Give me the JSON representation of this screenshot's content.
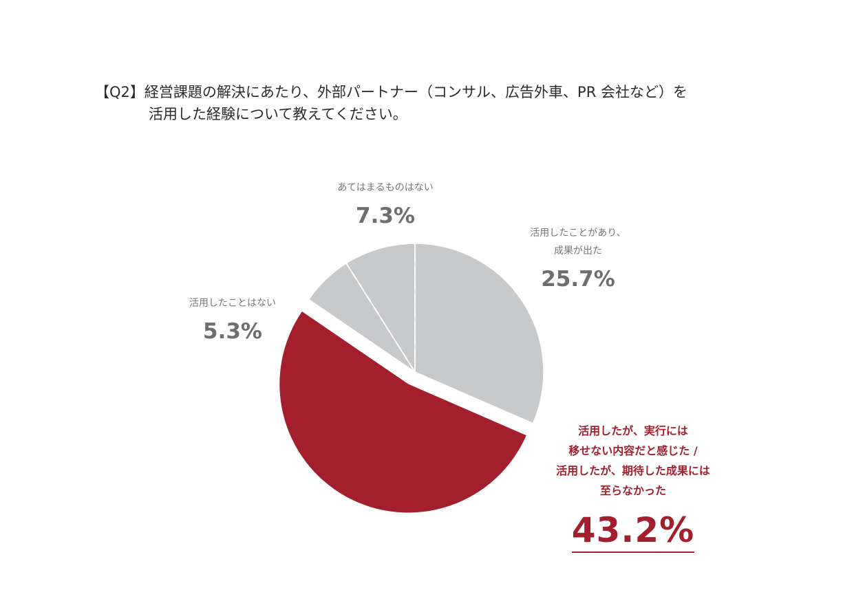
{
  "question": {
    "line1": "【Q2】経営課題の解決にあたり、外部パートナー（コンサル、広告外車、PR 会社など）を",
    "line2": "活用した経験について教えてください。"
  },
  "colors": {
    "accent": "#a41f2d",
    "gray_slice": "#c8c9cb",
    "divider": "#ffffff"
  },
  "chart_data": {
    "type": "pie",
    "title": "",
    "slices": [
      {
        "key": "success",
        "label_lines": [
          "活用したことがあり、",
          "成果が出た"
        ],
        "value": 25.7,
        "value_label": "25.7%",
        "color": "#c8c9cb",
        "exploded": false
      },
      {
        "key": "main",
        "label_lines": [
          "活用したが、実行には",
          "移せない内容だと感じた /",
          "活用したが、期待した成果には",
          "至らなかった"
        ],
        "value": 43.2,
        "value_label": "43.2%",
        "color": "#a41f2d",
        "exploded": true
      },
      {
        "key": "unused",
        "label_lines": [
          "活用したことはない"
        ],
        "value": 5.3,
        "value_label": "5.3%",
        "color": "#c8c9cb",
        "exploded": false
      },
      {
        "key": "none",
        "label_lines": [
          "あてはまるものはない"
        ],
        "value": 7.3,
        "value_label": "7.3%",
        "color": "#c8c9cb",
        "exploded": false
      }
    ],
    "start_angle_deg": 0,
    "direction": "clockwise",
    "legend": "none"
  }
}
